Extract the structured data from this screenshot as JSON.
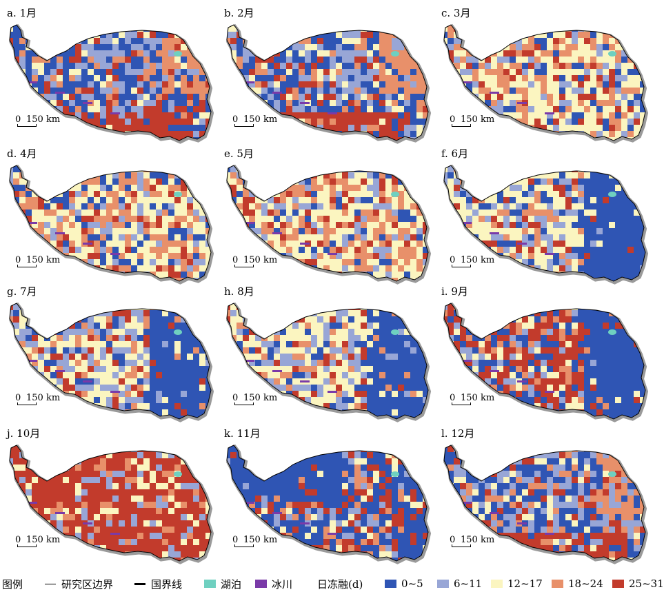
{
  "panels": [
    {
      "label": "a. 1月",
      "dominant": "blue"
    },
    {
      "label": "b. 2月",
      "dominant": "blue"
    },
    {
      "label": "c. 3月",
      "dominant": "mixed"
    },
    {
      "label": "d. 4月",
      "dominant": "mixed"
    },
    {
      "label": "e. 5月",
      "dominant": "mixed"
    },
    {
      "label": "f. 6月",
      "dominant": "blue-east"
    },
    {
      "label": "g. 7月",
      "dominant": "blue-east"
    },
    {
      "label": "h. 8月",
      "dominant": "blue-east"
    },
    {
      "label": "i. 9月",
      "dominant": "red-west"
    },
    {
      "label": "j. 10月",
      "dominant": "red"
    },
    {
      "label": "k. 11月",
      "dominant": "blue-north"
    },
    {
      "label": "l. 12月",
      "dominant": "blue"
    }
  ],
  "scalebar": {
    "zero": "0",
    "value": "150 km"
  },
  "legend": {
    "title": "图例",
    "boundary_label": "研究区边界",
    "national_label": "国界线",
    "lake_label": "湖泊",
    "glacier_label": "冰川",
    "ftd_label": "日冻融(d)",
    "classes": [
      {
        "label": "0~5",
        "color": "#2f55b4"
      },
      {
        "label": "6~11",
        "color": "#98a6d6"
      },
      {
        "label": "12~17",
        "color": "#fbf5c0"
      },
      {
        "label": "18~24",
        "color": "#e8906a"
      },
      {
        "label": "25~31",
        "color": "#c23b2c"
      }
    ],
    "lake_color": "#6fd0c0",
    "glacier_color": "#7a3aa8"
  }
}
